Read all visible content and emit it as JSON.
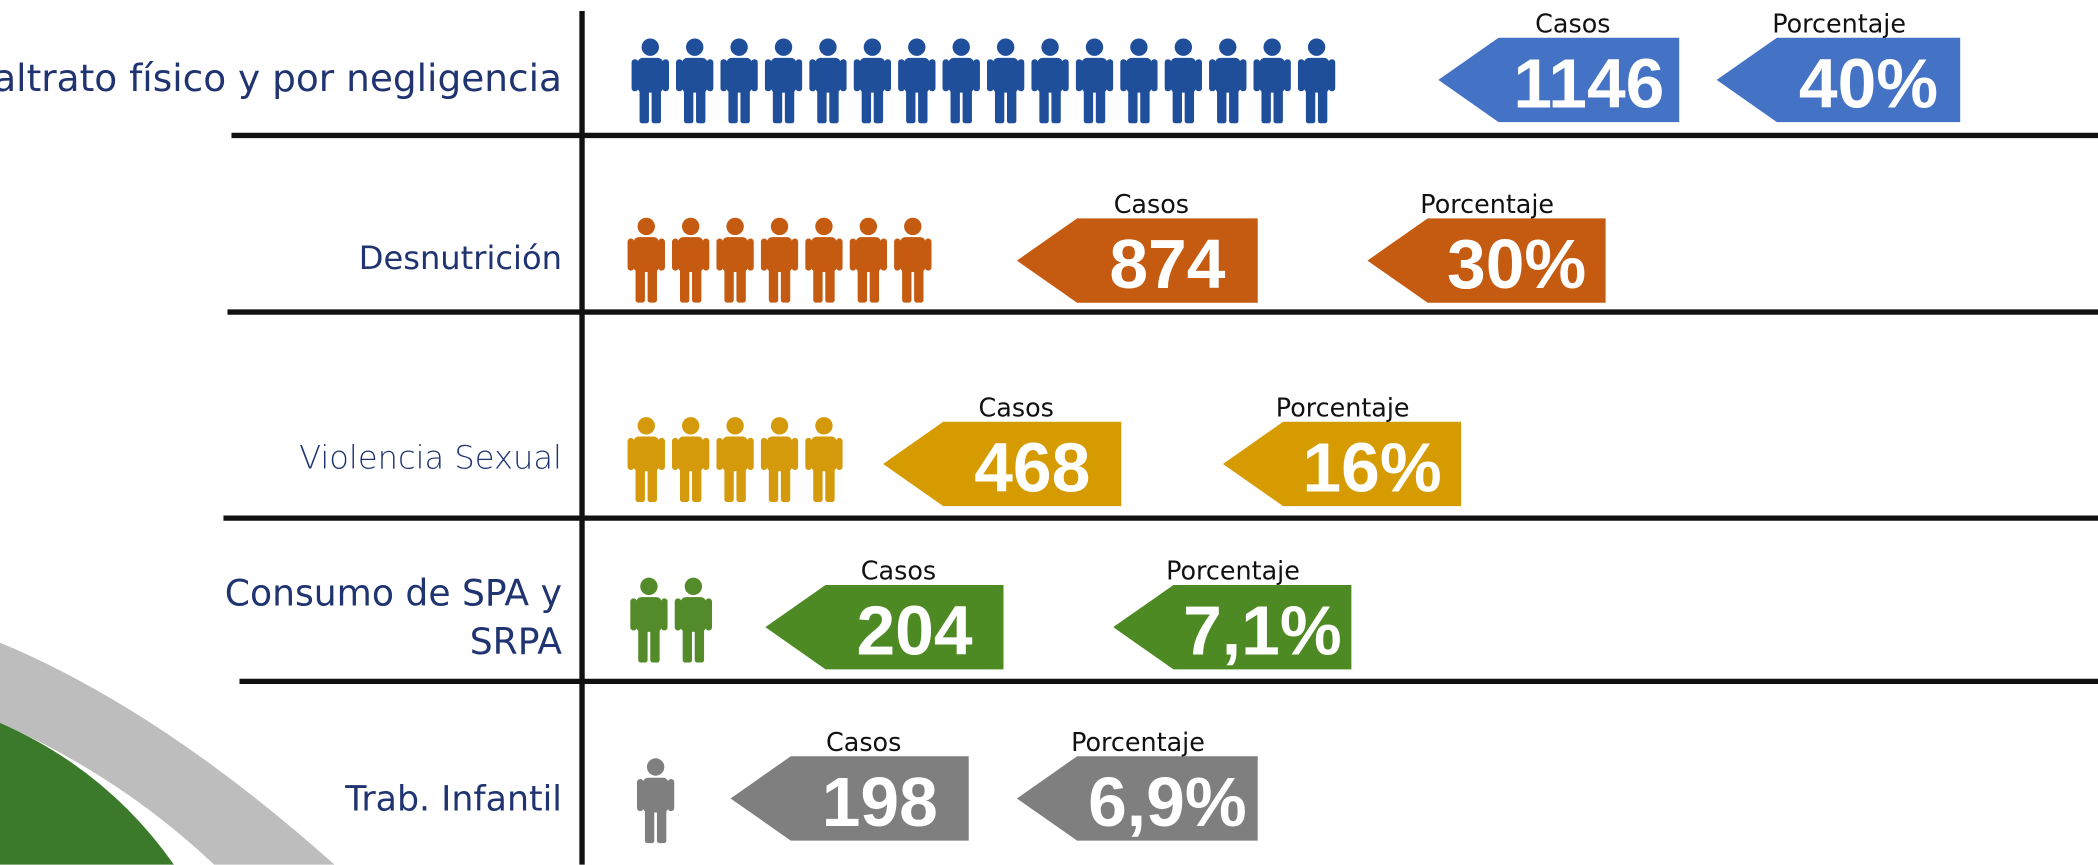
{
  "rows": [
    {
      "label": [
        "Maltrato físico y por negligencia"
      ],
      "icons": 16,
      "color": "#1f4e9a",
      "arrow_color": "#4472c4",
      "cases_label": "Casos",
      "cases": "1146",
      "percent_label": "Porcentaje",
      "percent": "40%"
    },
    {
      "label": [
        "Desnutrición"
      ],
      "icons": 7,
      "color": "#c55a11",
      "arrow_color": "#c55a11",
      "cases_label": "Casos",
      "cases": "874",
      "percent_label": "Porcentaje",
      "percent": "30%"
    },
    {
      "label": [
        "Violencia Sexual"
      ],
      "icons": 5,
      "color": "#d49a0b",
      "arrow_color": "#d59b00",
      "cases_label": "Casos",
      "cases": "468",
      "percent_label": "Porcentaje",
      "percent": "16%"
    },
    {
      "label": [
        "Consumo de SPA y",
        "SRPA"
      ],
      "icons": 2,
      "color": "#548b2a",
      "arrow_color": "#4e8a23",
      "cases_label": "Casos",
      "cases": "204",
      "percent_label": "Porcentaje",
      "percent": "7,1%"
    },
    {
      "label": [
        "Trab. Infantil"
      ],
      "icons": 1,
      "color": "#7f7f7f",
      "arrow_color": "#7f7f7f",
      "cases_label": "Casos",
      "cases": "198",
      "percent_label": "Porcentaje",
      "percent": "6,9%"
    }
  ]
}
